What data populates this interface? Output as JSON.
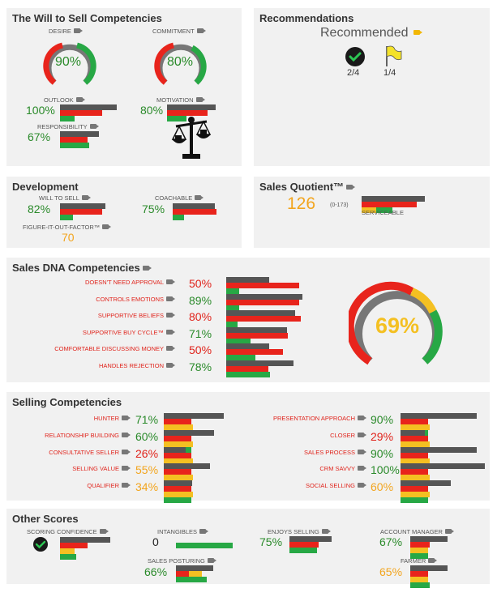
{
  "will": {
    "title": "The Will to Sell Competencies",
    "desire": {
      "label": "DESIRE",
      "value": "90%",
      "fraction": 0.9
    },
    "commitment": {
      "label": "COMMITMENT",
      "value": "80%",
      "fraction": 0.8
    },
    "outlook": {
      "label": "OUTLOOK",
      "value": "100%",
      "fraction": 1.0
    },
    "motivation": {
      "label": "MOTIVATION",
      "value": "80%",
      "fraction": 0.8
    },
    "responsibility": {
      "label": "RESPONSIBILITY",
      "value": "67%",
      "fraction": 0.67
    }
  },
  "recommendations": {
    "title": "Recommendations",
    "status": "Recommended",
    "checks": "2/4",
    "flags": "1/4"
  },
  "development": {
    "title": "Development",
    "will_to_sell": {
      "label": "WILL TO SELL",
      "value": "82%",
      "fraction": 0.82
    },
    "coachable": {
      "label": "COACHABLE",
      "value": "75%",
      "fraction": 0.75
    },
    "fiof": {
      "label": "FIGURE-IT-OUT-FACTOR™",
      "value": "70"
    }
  },
  "sales_quotient": {
    "title": "Sales Quotient™",
    "value": "126",
    "range": "(0-173)",
    "rating": "SERVICEABLE",
    "fraction": 0.73
  },
  "dna": {
    "title": "Sales DNA Competencies",
    "overall": "69%",
    "overall_fraction": 0.69,
    "items": [
      {
        "label": "DOESN'T NEED APPROVAL",
        "value": "50%",
        "fraction": 0.5,
        "color": "r"
      },
      {
        "label": "CONTROLS EMOTIONS",
        "value": "89%",
        "fraction": 0.89,
        "color": "g"
      },
      {
        "label": "SUPPORTIVE BELIEFS",
        "value": "80%",
        "fraction": 0.8,
        "color": "r"
      },
      {
        "label": "SUPPORTIVE BUY CYCLE™",
        "value": "71%",
        "fraction": 0.71,
        "color": "g"
      },
      {
        "label": "COMFORTABLE DISCUSSING MONEY",
        "value": "50%",
        "fraction": 0.5,
        "color": "r"
      },
      {
        "label": "HANDLES REJECTION",
        "value": "78%",
        "fraction": 0.78,
        "color": "g"
      }
    ]
  },
  "selling": {
    "title": "Selling Competencies",
    "left": [
      {
        "label": "HUNTER",
        "value": "71%",
        "fraction": 0.71,
        "color": "g"
      },
      {
        "label": "RELATIONSHIP BUILDING",
        "value": "60%",
        "fraction": 0.6,
        "color": "g"
      },
      {
        "label": "CONSULTATIVE SELLER",
        "value": "26%",
        "fraction": 0.26,
        "color": "r"
      },
      {
        "label": "SELLING VALUE",
        "value": "55%",
        "fraction": 0.55,
        "color": "o"
      },
      {
        "label": "QUALIFIER",
        "value": "34%",
        "fraction": 0.34,
        "color": "o"
      }
    ],
    "right": [
      {
        "label": "PRESENTATION APPROACH",
        "value": "90%",
        "fraction": 0.9,
        "color": "g"
      },
      {
        "label": "CLOSER",
        "value": "29%",
        "fraction": 0.29,
        "color": "r"
      },
      {
        "label": "SALES PROCESS",
        "value": "90%",
        "fraction": 0.9,
        "color": "g"
      },
      {
        "label": "CRM SAVVY",
        "value": "100%",
        "fraction": 1.0,
        "color": "g"
      },
      {
        "label": "SOCIAL SELLING",
        "value": "60%",
        "fraction": 0.6,
        "color": "o"
      }
    ]
  },
  "other": {
    "title": "Other Scores",
    "scoring_confidence": {
      "label": "SCORING CONFIDENCE",
      "fraction": 0.85
    },
    "intangibles": {
      "label": "INTANGIBLES",
      "value": "0"
    },
    "enjoys_selling": {
      "label": "ENJOYS SELLING",
      "value": "75%",
      "fraction": 0.75
    },
    "account_manager": {
      "label": "ACCOUNT MANAGER",
      "value": "67%",
      "fraction": 0.67
    },
    "sales_posturing": {
      "label": "SALES POSTURING",
      "value": "66%",
      "fraction": 0.66
    },
    "farmer": {
      "label": "FARMER",
      "value": "65%",
      "fraction": 0.65
    }
  }
}
